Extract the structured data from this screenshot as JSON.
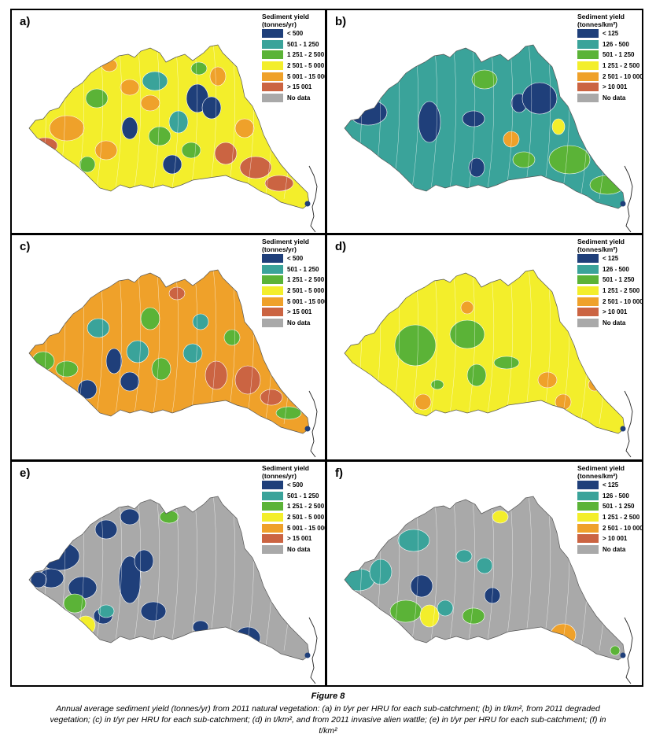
{
  "figure": {
    "title": "Figure 8",
    "caption": "Annual average sediment yield (tonnes/yr) from 2011 natural vegetation: (a) in t/yr per HRU for each sub-catchment; (b) in t/km², from 2011 degraded vegetation; (c) in t/yr per HRU for each sub-catchment; (d) in t/km², and from 2011 invasive alien wattle; (e) in t/yr per HRU for each sub-catchment; (f) in t/km²"
  },
  "legends": {
    "tonnes_yr": {
      "title": "Sediment yield (tonnes/yr)",
      "items": [
        {
          "label": "<      500",
          "color": "#1f3f7a"
        },
        {
          "label": "501 -   1 250",
          "color": "#3aa39a"
        },
        {
          "label": "1 251 -  2 500",
          "color": "#5bb337"
        },
        {
          "label": "2 501 -  5 000",
          "color": "#f3ee2b"
        },
        {
          "label": "5 001 - 15 000",
          "color": "#efa12a"
        },
        {
          "label": "> 15 001",
          "color": "#cb6442"
        },
        {
          "label": "No data",
          "color": "#a9a9a9"
        }
      ]
    },
    "tonnes_km2": {
      "title": "Sediment yield (tonnes/km²)",
      "items": [
        {
          "label": "<      125",
          "color": "#1f3f7a"
        },
        {
          "label": "126 -     500",
          "color": "#3aa39a"
        },
        {
          "label": "501 -   1 250",
          "color": "#5bb337"
        },
        {
          "label": "1 251 -  2 500",
          "color": "#f3ee2b"
        },
        {
          "label": "2 501 - 10 000",
          "color": "#efa12a"
        },
        {
          "label": "> 10 001",
          "color": "#cb6442"
        },
        {
          "label": "No data",
          "color": "#a9a9a9"
        }
      ]
    }
  },
  "panels": [
    {
      "label": "a)",
      "legend": "tonnes_yr",
      "base": "#f3ee2b"
    },
    {
      "label": "b)",
      "legend": "tonnes_km2",
      "base": "#3aa39a"
    },
    {
      "label": "c)",
      "legend": "tonnes_yr",
      "base": "#efa12a"
    },
    {
      "label": "d)",
      "legend": "tonnes_km2",
      "base": "#f3ee2b"
    },
    {
      "label": "e)",
      "legend": "tonnes_yr",
      "base": "#a9a9a9"
    },
    {
      "label": "f)",
      "legend": "tonnes_km2",
      "base": "#a9a9a9"
    }
  ]
}
